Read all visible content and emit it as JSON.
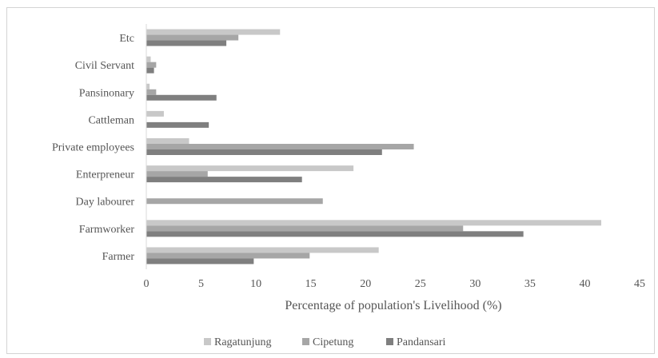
{
  "chart_data": {
    "type": "bar",
    "orientation": "horizontal",
    "title": "",
    "xlabel": "Percentage of population's Livelihood (%)",
    "ylabel": "",
    "xlim": [
      0,
      45
    ],
    "xticks": [
      "0",
      "5",
      "10",
      "15",
      "20",
      "25",
      "30",
      "35",
      "40",
      "45"
    ],
    "grid": false,
    "legend_position": "bottom",
    "categories": [
      "Etc",
      "Civil Servant",
      "Pansinonary",
      "Cattleman",
      "Private employees",
      "Enterpreneur",
      "Day labourer",
      "Farmworker",
      "Farmer"
    ],
    "series": [
      {
        "name": "Ragatunjung",
        "color": "#c8c8c8",
        "values": [
          12.2,
          0.4,
          0.3,
          1.6,
          3.9,
          18.9,
          0,
          41.5,
          21.2
        ]
      },
      {
        "name": "Cipetung",
        "color": "#a6a6a6",
        "values": [
          8.4,
          0.9,
          0.9,
          0,
          24.4,
          5.6,
          16.1,
          28.9,
          14.9
        ]
      },
      {
        "name": "Pandansari",
        "color": "#7f7f7f",
        "values": [
          7.3,
          0.7,
          6.4,
          5.7,
          21.5,
          14.2,
          0,
          34.4,
          9.8
        ]
      }
    ]
  }
}
